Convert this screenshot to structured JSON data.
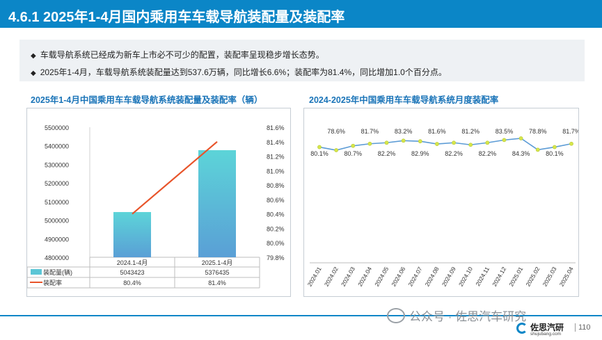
{
  "header": {
    "title": "4.6.1 2025年1-4月国内乘用车车载导航装配量及装配率"
  },
  "summary": {
    "bullets": [
      "车载导航系统已经成为新车上市必不可少的配置，装配率呈现稳步增长态势。",
      "2025年1-4月，车载导航系统装配量达到537.6万辆，同比增长6.6%；装配率为81.4%，同比增加1.0个百分点。"
    ],
    "bullet_marker": "◆"
  },
  "left_chart_title": "2025年1-4月中国乘用车车载导航系统装配量及装配率（辆）",
  "right_chart_title": "2024-2025年中国乘用车车载导航系统月度装配率",
  "chart_data": [
    {
      "type": "bar",
      "categories": [
        "2024.1-4月",
        "2025.1-4月"
      ],
      "series": [
        {
          "name": "装配量(辆)",
          "type": "bar",
          "values": [
            5043423,
            5376435
          ],
          "display": [
            "5043423",
            "5376435"
          ],
          "color": "#5cc6d6"
        },
        {
          "name": "装配率",
          "type": "line",
          "values": [
            80.4,
            81.4
          ],
          "display": [
            "80.4%",
            "81.4%"
          ],
          "color": "#e8542a"
        }
      ],
      "y_left": {
        "min": 4800000,
        "max": 5500000,
        "ticks": [
          "5500000",
          "5400000",
          "5300000",
          "5200000",
          "5100000",
          "5000000",
          "4900000",
          "4800000"
        ]
      },
      "y_right": {
        "min": 79.8,
        "max": 81.6,
        "ticks": [
          "81.6%",
          "81.4%",
          "81.2%",
          "81.0%",
          "80.8%",
          "80.6%",
          "80.4%",
          "80.2%",
          "80.0%",
          "79.8%"
        ]
      },
      "data_table": true
    },
    {
      "type": "line",
      "categories": [
        "2024.01",
        "2024.02",
        "2024.03",
        "2024.04",
        "2024.05",
        "2024.06",
        "2024.07",
        "2024.08",
        "2024.09",
        "2024.10",
        "2024.11",
        "2024.12",
        "2025.01",
        "2025.02",
        "2025.03",
        "2025.04"
      ],
      "series": [
        {
          "name": "装配率",
          "values": [
            80.1,
            78.6,
            80.7,
            81.7,
            82.2,
            83.2,
            82.9,
            81.6,
            82.2,
            81.2,
            82.2,
            83.5,
            84.3,
            78.8,
            80.1,
            81.7
          ],
          "labels": [
            "80.1%",
            "78.6%",
            "80.7%",
            "81.7%",
            "82.2%",
            "83.2%",
            "82.9%",
            "81.6%",
            "82.2%",
            "81.2%",
            "82.2%",
            "83.5%",
            "84.3%",
            "78.8%",
            "80.1%",
            "81.7%"
          ],
          "color": "#5b9bd5",
          "marker_color": "#d6e64a"
        }
      ]
    }
  ],
  "watermark": {
    "text": "公众号 · 佐思汽车研究"
  },
  "footer": {
    "logo_name": "佐思汽研",
    "logo_url": "shujubang.com",
    "page_number": "110"
  },
  "colors": {
    "brand": "#0b86c7",
    "bar": "#5cc6d6",
    "rate_line": "#e8542a",
    "monthly_line": "#5b9bd5"
  }
}
